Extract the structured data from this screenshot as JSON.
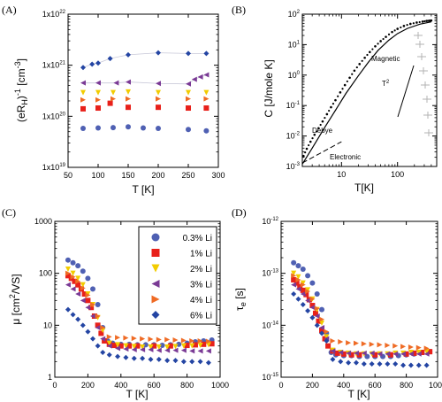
{
  "series_styles": [
    {
      "name": "0.3% Li",
      "color": "#4f60b3",
      "marker": "circle"
    },
    {
      "name": "1% Li",
      "color": "#e8201a",
      "marker": "square"
    },
    {
      "name": "2% Li",
      "color": "#f2cc00",
      "marker": "triangle-down"
    },
    {
      "name": "3% Li",
      "color": "#7a3a95",
      "marker": "triangle-left"
    },
    {
      "name": "4% Li",
      "color": "#ef6b25",
      "marker": "triangle-right"
    },
    {
      "name": "6% Li",
      "color": "#2445a3",
      "marker": "diamond"
    }
  ],
  "chart_data": [
    {
      "panel": "(A)",
      "type": "scatter",
      "xlabel": "T [K]",
      "ylabel": "(eR_H)^-1 [cm^-3]",
      "xlim": [
        50,
        300
      ],
      "ylim": [
        1e+19,
        1e+22
      ],
      "yscale": "log",
      "xticks": [
        "50",
        "100",
        "150",
        "200",
        "250",
        "300"
      ],
      "yticks": [
        "1x10^19",
        "1x10^20",
        "1x10^21",
        "1x10^22"
      ],
      "series": [
        {
          "x": [
            75,
            100,
            125,
            150,
            175,
            200,
            250,
            280
          ],
          "values": [
            5.8e+19,
            5.9e+19,
            6e+19,
            6.2e+19,
            5.9e+19,
            5.8e+19,
            5.5e+19,
            5.2e+19
          ]
        },
        {
          "x": [
            75,
            100,
            120,
            150,
            200,
            250,
            280
          ],
          "values": [
            1.4e+20,
            1.45e+20,
            1.8e+20,
            1.5e+20,
            1.5e+20,
            1.45e+20,
            1.45e+20
          ]
        },
        {
          "x": [
            75,
            100,
            125,
            150,
            200,
            250,
            280
          ],
          "values": [
            2.9e+20,
            2.9e+20,
            2.9e+20,
            3e+20,
            2.9e+20,
            2.9e+20,
            2.9e+20
          ]
        },
        {
          "x": [
            75,
            100,
            130,
            150,
            200,
            250,
            260,
            270,
            280
          ],
          "values": [
            4.5e+20,
            4.5e+20,
            4.5e+20,
            4.7e+20,
            4.4e+20,
            4.3e+20,
            5.3e+20,
            5.9e+20,
            6.5e+20
          ]
        },
        {
          "x": [
            75,
            100,
            125,
            150,
            200,
            250,
            280
          ],
          "values": [
            2.1e+20,
            2.1e+20,
            2.2e+20,
            2.2e+20,
            2.2e+20,
            2.2e+20,
            2.2e+20
          ]
        },
        {
          "x": [
            75,
            90,
            100,
            120,
            150,
            200,
            250,
            280
          ],
          "values": [
            9e+20,
            1.05e+21,
            1.1e+21,
            1.35e+21,
            1.6e+21,
            1.75e+21,
            1.7e+21,
            1.7e+21
          ]
        }
      ]
    },
    {
      "panel": "(B)",
      "type": "line",
      "xlabel": "T[K]",
      "ylabel": "C [J/mole K]",
      "xlim": [
        2,
        500
      ],
      "ylim": [
        0.001,
        100
      ],
      "xscale": "log",
      "yscale": "log",
      "xticks": [
        "10",
        "100"
      ],
      "yticks": [
        "10^-3",
        "10^-2",
        "10^-1",
        "10^0",
        "10^1",
        "10^2"
      ],
      "annotations": [
        "Debye",
        "Electronic",
        "Magnetic",
        "T^2"
      ],
      "series": [
        {
          "type": "scatter",
          "x": [
            2.1,
            2.4,
            2.8,
            3.3,
            3.9,
            4.6,
            5.5,
            6.5,
            7.8,
            9.5,
            11.5,
            14,
            17,
            21,
            26,
            32,
            40,
            50,
            62,
            80,
            100,
            130,
            170,
            220,
            280,
            330,
            370,
            400
          ],
          "values": [
            0.0022,
            0.0038,
            0.0065,
            0.011,
            0.018,
            0.03,
            0.052,
            0.088,
            0.15,
            0.27,
            0.47,
            0.82,
            1.4,
            2.3,
            3.7,
            5.7,
            8.8,
            13,
            18,
            26,
            33,
            41,
            48,
            53,
            57,
            60,
            61,
            62
          ]
        },
        {
          "type": "line",
          "x": [
            2,
            3,
            5,
            8,
            12,
            20,
            30,
            45,
            70,
            100,
            150,
            250,
            400
          ],
          "values": [
            0.0012,
            0.004,
            0.019,
            0.075,
            0.25,
            0.95,
            2.6,
            6.5,
            14,
            23,
            34,
            47,
            56
          ]
        },
        {
          "type": "line",
          "x": [
            2,
            10
          ],
          "values": [
            0.0013,
            0.0065
          ]
        }
      ]
    },
    {
      "panel": "(C)",
      "type": "scatter",
      "xlabel": "T [K]",
      "ylabel": "μ [cm^2/VS]",
      "xlim": [
        0,
        1000
      ],
      "ylim": [
        1,
        1000
      ],
      "yscale": "log",
      "xticks": [
        "0",
        "200",
        "400",
        "600",
        "800",
        "1000"
      ],
      "yticks": [
        "1",
        "10",
        "100",
        "1000"
      ],
      "series": [
        {
          "x": [
            80,
            110,
            140,
            170,
            200,
            230,
            260,
            290,
            320,
            350,
            400,
            450,
            500,
            550,
            600,
            650,
            700,
            750,
            800,
            850,
            900,
            950
          ],
          "values": [
            180,
            160,
            140,
            110,
            80,
            50,
            25,
            9,
            5,
            4.5,
            4.3,
            4.3,
            4.2,
            4.2,
            4.2,
            4.1,
            4.2,
            4.3,
            4.5,
            4.8,
            5,
            5.2
          ]
        },
        {
          "x": [
            80,
            100,
            120,
            140,
            160,
            180,
            200,
            220,
            240,
            260,
            280,
            300,
            330,
            360,
            400,
            450,
            500,
            600,
            700,
            800,
            850,
            900,
            950
          ],
          "values": [
            90,
            80,
            70,
            60,
            50,
            40,
            30,
            22,
            15,
            10,
            7,
            5,
            4.3,
            4.1,
            4.0,
            4.0,
            4.0,
            4.0,
            4.0,
            4.1,
            4.2,
            4.3,
            4.4
          ]
        },
        {
          "x": [
            80,
            110,
            140,
            170,
            200,
            230,
            260,
            290,
            330,
            380,
            430,
            480,
            530,
            580,
            630,
            680,
            730,
            780,
            830,
            880,
            930
          ],
          "values": [
            120,
            100,
            80,
            60,
            40,
            25,
            14,
            8,
            4.5,
            4.2,
            4.0,
            3.9,
            3.8,
            3.8,
            3.8,
            3.8,
            3.9,
            4.0,
            4.0,
            4.1,
            4.2
          ]
        },
        {
          "x": [
            80,
            110,
            140,
            170,
            200,
            230,
            260,
            290,
            330,
            380,
            430,
            480,
            530,
            580,
            630,
            680,
            730,
            780,
            830,
            880,
            930
          ],
          "values": [
            60,
            50,
            40,
            30,
            22,
            15,
            9,
            5.5,
            4.0,
            3.6,
            3.5,
            3.4,
            3.4,
            3.4,
            3.3,
            3.3,
            3.3,
            3.3,
            3.2,
            3.2,
            3.2
          ]
        },
        {
          "x": [
            80,
            110,
            140,
            170,
            200,
            230,
            260,
            290,
            330,
            380,
            430,
            480,
            530,
            580,
            630,
            680,
            730,
            780,
            830,
            880,
            930
          ],
          "values": [
            100,
            85,
            70,
            52,
            38,
            25,
            15,
            9,
            6.0,
            5.8,
            5.7,
            5.6,
            5.5,
            5.4,
            5.3,
            5.3,
            5.2,
            5.1,
            5.0,
            5.0,
            4.9
          ]
        },
        {
          "x": [
            80,
            110,
            140,
            170,
            200,
            230,
            260,
            290,
            330,
            380,
            430,
            480,
            530,
            580,
            630,
            680,
            730,
            780,
            830,
            880,
            930
          ],
          "values": [
            20,
            16,
            13,
            10,
            7.5,
            5.5,
            4.0,
            3.0,
            2.7,
            2.5,
            2.4,
            2.3,
            2.3,
            2.2,
            2.2,
            2.1,
            2.1,
            2.0,
            2.0,
            2.0,
            1.9
          ]
        }
      ]
    },
    {
      "panel": "(D)",
      "type": "scatter",
      "xlabel": "T [K]",
      "ylabel": "τ_e [s]",
      "xlim": [
        0,
        1000
      ],
      "ylim": [
        1e-15,
        1e-12
      ],
      "yscale": "log",
      "xticks": [
        "0",
        "200",
        "400",
        "600",
        "800",
        "1000"
      ],
      "yticks": [
        "10^-15",
        "10^-14",
        "10^-13",
        "10^-12"
      ],
      "series": [
        {
          "x": [
            80,
            110,
            140,
            170,
            200,
            230,
            260,
            290,
            320,
            350,
            400,
            450,
            500,
            550,
            600,
            650,
            700,
            750,
            800,
            850,
            900,
            950
          ],
          "values": [
            1.6e-13,
            1.4e-13,
            1.2e-13,
            9e-14,
            6.5e-14,
            4e-14,
            2e-14,
            7e-15,
            3e-15,
            2.7e-15,
            2.6e-15,
            2.6e-15,
            2.5e-15,
            2.5e-15,
            2.5e-15,
            2.5e-15,
            2.5e-15,
            2.6e-15,
            2.7e-15,
            2.8e-15,
            3e-15,
            3.1e-15
          ]
        },
        {
          "x": [
            80,
            100,
            120,
            140,
            160,
            180,
            200,
            220,
            240,
            260,
            280,
            300,
            330,
            360,
            400,
            450,
            500,
            600,
            700,
            800,
            850,
            900,
            950
          ],
          "values": [
            7.5e-14,
            6.5e-14,
            5.5e-14,
            4.7e-14,
            3.9e-14,
            3.1e-14,
            2.4e-14,
            1.7e-14,
            1.2e-14,
            8e-15,
            5.5e-15,
            4e-15,
            3.2e-15,
            2.9e-15,
            2.8e-15,
            2.7e-15,
            2.7e-15,
            2.7e-15,
            2.7e-15,
            2.8e-15,
            2.9e-15,
            3e-15,
            3.1e-15
          ]
        },
        {
          "x": [
            80,
            110,
            140,
            170,
            200,
            230,
            260,
            290,
            330,
            380,
            430,
            480,
            530,
            580,
            630,
            680,
            730,
            780,
            830,
            880,
            930
          ],
          "values": [
            1e-13,
            8.5e-14,
            6.5e-14,
            4.8e-14,
            3.2e-14,
            2e-14,
            1.1e-14,
            6e-15,
            3.3e-15,
            3e-15,
            2.9e-15,
            2.8e-15,
            2.8e-15,
            2.8e-15,
            2.8e-15,
            2.8e-15,
            2.9e-15,
            2.9e-15,
            3e-15,
            3e-15,
            3.1e-15
          ]
        },
        {
          "x": [
            80,
            110,
            140,
            170,
            200,
            230,
            260,
            290,
            330,
            380,
            430,
            480,
            530,
            580,
            630,
            680,
            730,
            780,
            830,
            880,
            930
          ],
          "values": [
            6e-14,
            5e-14,
            4e-14,
            3e-14,
            2.2e-14,
            1.5e-14,
            9e-15,
            5.5e-15,
            3.2e-15,
            3e-15,
            2.9e-15,
            2.9e-15,
            2.9e-15,
            2.9e-15,
            2.8e-15,
            2.8e-15,
            2.8e-15,
            2.8e-15,
            2.8e-15,
            2.8e-15,
            2.8e-15
          ]
        },
        {
          "x": [
            80,
            110,
            140,
            170,
            200,
            230,
            260,
            290,
            330,
            380,
            430,
            480,
            530,
            580,
            630,
            680,
            730,
            780,
            830,
            880,
            930
          ],
          "values": [
            9e-14,
            7.5e-14,
            6e-14,
            4.5e-14,
            3.2e-14,
            2.1e-14,
            1.3e-14,
            7.5e-15,
            5e-15,
            4.8e-15,
            4.6e-15,
            4.5e-15,
            4.4e-15,
            4.3e-15,
            4.2e-15,
            4.1e-15,
            4e-15,
            3.9e-15,
            3.8e-15,
            3.7e-15,
            3.6e-15
          ]
        },
        {
          "x": [
            80,
            110,
            140,
            170,
            200,
            230,
            260,
            290,
            330,
            380,
            430,
            480,
            530,
            580,
            630,
            680,
            730,
            780,
            830,
            880,
            930
          ],
          "values": [
            4e-14,
            3.2e-14,
            2.5e-14,
            1.9e-14,
            1.4e-14,
            1e-14,
            7e-15,
            5e-15,
            2.2e-15,
            2e-15,
            1.9e-15,
            1.9e-15,
            1.8e-15,
            1.8e-15,
            1.8e-15,
            1.8e-15,
            1.8e-15,
            1.7e-15,
            1.7e-15,
            1.7e-15,
            1.7e-15
          ]
        }
      ]
    }
  ]
}
